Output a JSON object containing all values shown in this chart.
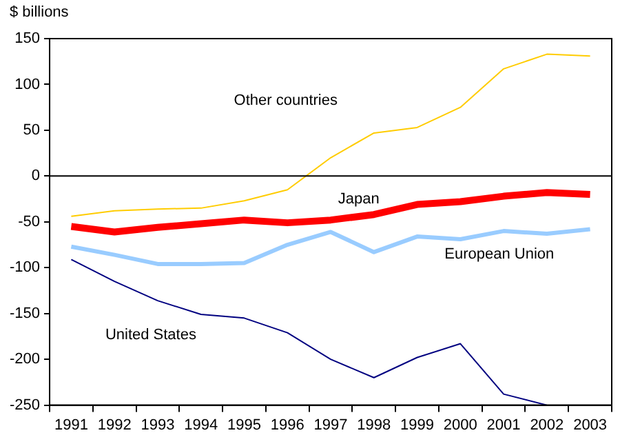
{
  "chart_data": {
    "type": "line",
    "ylabel": "$ billions",
    "categories": [
      "1991",
      "1992",
      "1993",
      "1994",
      "1995",
      "1996",
      "1997",
      "1998",
      "1999",
      "2000",
      "2001",
      "2002",
      "2003"
    ],
    "series": [
      {
        "name": "Other countries",
        "color": "#ffcc00",
        "values": [
          -44,
          -38,
          -36,
          -35,
          -27,
          -15,
          20,
          47,
          53,
          75,
          117,
          133,
          131
        ]
      },
      {
        "name": "Japan",
        "color": "#ff0000",
        "values": [
          -55,
          -61,
          -56,
          -52,
          -48,
          -51,
          -48,
          -42,
          -31,
          -28,
          -22,
          -18,
          -20
        ]
      },
      {
        "name": "European Union",
        "color": "#99ccff",
        "values": [
          -77,
          -86,
          -96,
          -96,
          -95,
          -75,
          -61,
          -83,
          -66,
          -69,
          -60,
          -63,
          -58
        ]
      },
      {
        "name": "United States",
        "color": "#000080",
        "values": [
          -91,
          -115,
          -136,
          -151,
          -155,
          -171,
          -200,
          -220,
          -198,
          -183,
          -238,
          -250,
          null
        ]
      }
    ],
    "ylim": [
      -250,
      150
    ],
    "yticks": [
      -250,
      -200,
      -150,
      -100,
      -50,
      0,
      50,
      100,
      150
    ],
    "ref_lines": [
      {
        "axis": "y",
        "value": 0,
        "color": "#000000"
      }
    ],
    "grid": false,
    "legend": false,
    "marker": "none",
    "line_style": "solid"
  }
}
